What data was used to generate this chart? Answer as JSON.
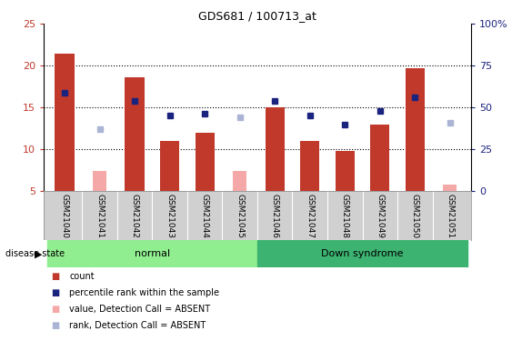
{
  "title": "GDS681 / 100713_at",
  "samples": [
    "GSM21040",
    "GSM21041",
    "GSM21042",
    "GSM21043",
    "GSM21044",
    "GSM21045",
    "GSM21046",
    "GSM21047",
    "GSM21048",
    "GSM21049",
    "GSM21050",
    "GSM21051"
  ],
  "count_values": [
    21.4,
    null,
    18.6,
    11.0,
    12.0,
    null,
    15.0,
    11.0,
    9.8,
    13.0,
    19.7,
    null
  ],
  "absent_count_values": [
    null,
    7.4,
    null,
    null,
    null,
    7.4,
    null,
    null,
    null,
    null,
    null,
    5.8
  ],
  "percentile_values": [
    59.0,
    null,
    54.0,
    45.0,
    46.0,
    null,
    54.0,
    45.0,
    40.0,
    48.0,
    56.0,
    null
  ],
  "absent_rank_values": [
    null,
    37.0,
    null,
    null,
    null,
    44.0,
    null,
    null,
    null,
    null,
    null,
    41.0
  ],
  "normal_group": [
    0,
    1,
    2,
    3,
    4,
    5
  ],
  "downsyn_group": [
    6,
    7,
    8,
    9,
    10,
    11
  ],
  "ylim_left": [
    5,
    25
  ],
  "ylim_right": [
    0,
    100
  ],
  "yticks_left": [
    5,
    10,
    15,
    20,
    25
  ],
  "yticks_right": [
    0,
    25,
    50,
    75,
    100
  ],
  "ytick_labels_left": [
    "5",
    "10",
    "15",
    "20",
    "25"
  ],
  "ytick_labels_right": [
    "0",
    "25",
    "50",
    "75",
    "100%"
  ],
  "color_count": "#c0392b",
  "color_absent_count": "#f4a9a8",
  "color_percentile": "#1a237e",
  "color_absent_rank": "#aab4d4",
  "color_normal_bg": "#90ee90",
  "color_downsyn_bg": "#3cb371",
  "color_tick_area": "#d0d0d0",
  "bar_width": 0.55
}
